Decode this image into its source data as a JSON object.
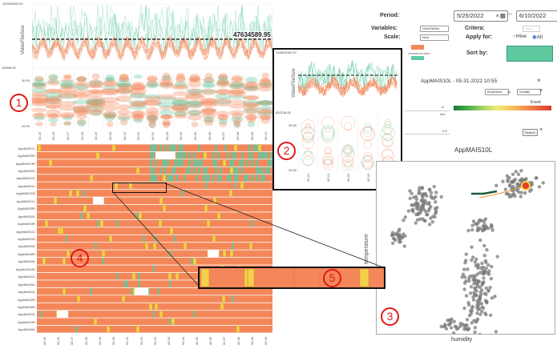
{
  "controls": {
    "period_label": "Period:",
    "period_from": "5/25/2022",
    "period_sep": "--",
    "period_to": "6/10/2022",
    "variables_label": "Variables:",
    "variables_value": "VideoFileSize",
    "critera_label": "Critera:",
    "critera_value": "None",
    "scale_label": "Scale:",
    "scale_value": "None",
    "apply_label": "Apply for:",
    "apply_hive": "Hive",
    "apply_all": "All",
    "sortby_label": "Sort by:",
    "legend_text": "47634589.95 VIDEO",
    "threshold_value": "47634589.95",
    "detail_title": "AppMAIS10L - 05-31-2022 10:55",
    "var_x": "temperature",
    "vs_label": "vs.",
    "var_y": "humidity",
    "event_label": "Event",
    "w_label": "w",
    "min_label": "min",
    "slider_value": "0.5",
    "search_label": "Search",
    "close_glyph": "×"
  },
  "colors": {
    "orange": "#f4875a",
    "teal": "#5fc9a0",
    "yellow": "#f5d04a",
    "dark_green": "#1a5c3a",
    "gray": "#7a7a7a"
  },
  "main_chart": {
    "y_top": "100925602.00",
    "y_bottom": "62696.00",
    "y_axis_label": "VideoFileSize",
    "box_y_top": "30.00",
    "box_y_bottom": "20.00"
  },
  "dates": [
    "05-25",
    "05-26",
    "05-27",
    "05-28",
    "05-29",
    "05-30",
    "05-31",
    "06-01",
    "06-02",
    "06-03",
    "06-04",
    "06-05",
    "06-06",
    "06-07",
    "06-08",
    "06-09",
    "06-10"
  ],
  "hives": [
    "AppMAIS7L",
    "AppMAIS9R",
    "AppMAIS13R",
    "AppMAIS9L",
    "AppMAIS10L",
    "AppMAIS1L",
    "AppMAIS11R",
    "AppMAIS11L",
    "AppMAIS5R",
    "AppMAIS5L",
    "AppMAIS3R",
    "AppMAIS12L",
    "AppMAIS1R",
    "AppMAIS3L",
    "AppMAIS8R",
    "AppMAIS8L",
    "AppMAIS10R",
    "AppMAIS2L",
    "AppMAIS6L",
    "AppMAIS4L",
    "AppMAIS2R",
    "AppMAIS6R",
    "AppMAIS3L",
    "AppMAIS4R",
    "AppMAIS6L"
  ],
  "zoom_chart": {
    "y_top": "134624062.00",
    "y_bottom": "832136.00",
    "y_axis_label": "VideoFileSize",
    "box_y_top": "30.00",
    "box_y_bottom": "20.00",
    "dates": [
      "05-31",
      "06-01",
      "06-02",
      "06-03",
      "06-04"
    ]
  },
  "scatter": {
    "title": "AppMAIS10L",
    "xlabel": "humidity",
    "ylabel": "temperature"
  },
  "annotations": [
    "1",
    "2",
    "3",
    "4",
    "5"
  ]
}
